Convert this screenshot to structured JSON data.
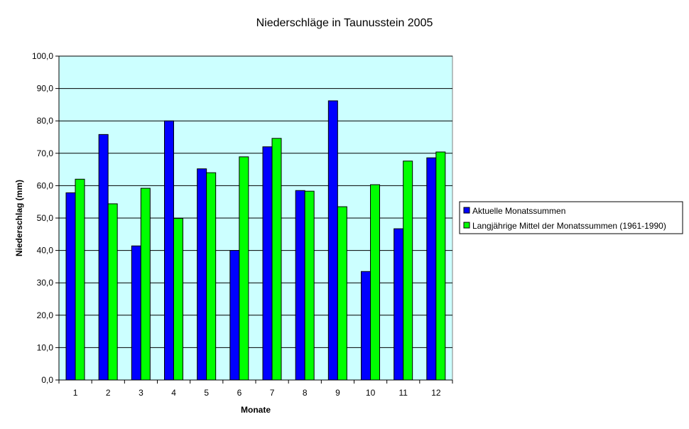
{
  "chart_data": {
    "type": "bar",
    "title": "Niederschläge in Taunusstein 2005",
    "xlabel": "Monate",
    "ylabel": "Niederschlag (mm)",
    "categories": [
      "1",
      "2",
      "3",
      "4",
      "5",
      "6",
      "7",
      "8",
      "9",
      "10",
      "11",
      "12"
    ],
    "ylim": [
      0,
      100
    ],
    "yticks": [
      "0,0",
      "10,0",
      "20,0",
      "30,0",
      "40,0",
      "50,0",
      "60,0",
      "70,0",
      "80,0",
      "90,0",
      "100,0"
    ],
    "grid": true,
    "legend_position": "right",
    "plot_background": "#ccffff",
    "series": [
      {
        "name": "Aktuelle Monatssummen",
        "color": "#0000ff",
        "values": [
          57.8,
          75.8,
          41.4,
          80.0,
          65.2,
          40.0,
          72.0,
          58.5,
          86.2,
          33.5,
          46.7,
          68.6
        ]
      },
      {
        "name": "Langjährige Mittel der Monatssummen (1961-1990)",
        "color": "#00ff00",
        "values": [
          62.0,
          54.4,
          59.2,
          49.9,
          64.0,
          68.9,
          74.6,
          58.3,
          53.5,
          60.3,
          67.6,
          70.4
        ]
      }
    ]
  }
}
